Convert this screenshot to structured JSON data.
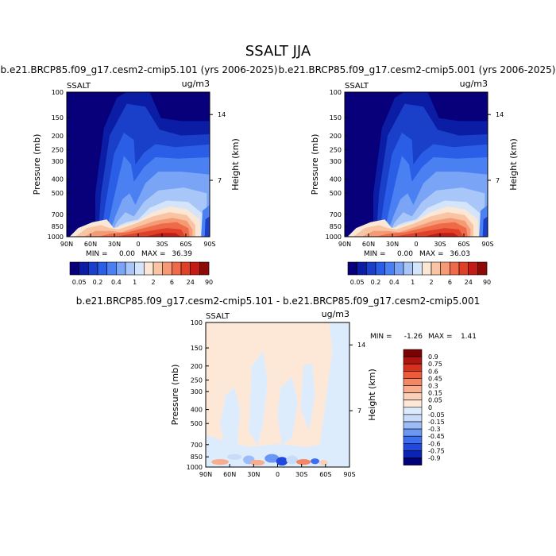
{
  "page_title": "SSALT JJA",
  "colors": {
    "ramp": [
      "#08007a",
      "#0a1da4",
      "#1a3fc8",
      "#2a5ee6",
      "#4a80f2",
      "#7aa4f6",
      "#a8c6f8",
      "#d4e4fb",
      "#fbe7d6",
      "#f9c4a4",
      "#f59a74",
      "#ee6a48",
      "#e03f28",
      "#c41c14",
      "#8e0a06"
    ],
    "diff_ramp": [
      "#00007a",
      "#0a24b4",
      "#1f48de",
      "#3c6ef0",
      "#6a96f4",
      "#9cbcf7",
      "#c8dcfa",
      "#ddecfd",
      "#fde8d8",
      "#fbd0b8",
      "#f8ae8c",
      "#f48664",
      "#ee5a3c",
      "#d8301e",
      "#b01410",
      "#7a0202"
    ]
  },
  "chart_data": [
    {
      "type": "heatmap",
      "title": "b.e21.BRCP85.f09_g17.cesm2-cmip5.101 (yrs 2006-2025)",
      "corner_left": "SSALT",
      "corner_right": "ug/m3",
      "ylabel": "Pressure (mb)",
      "y2label": "Height (km)",
      "x_ticks": [
        "90N",
        "60N",
        "30N",
        "0",
        "30S",
        "60S",
        "90S"
      ],
      "y_ticks": [
        "100",
        "150",
        "200",
        "250",
        "300",
        "400",
        "500",
        "700",
        "850",
        "1000"
      ],
      "y2_ticks": [
        "14",
        "7"
      ],
      "stats_min_label": "MIN =",
      "stats_min": "0.00",
      "stats_max_label": "MAX =",
      "stats_max": "36.39"
    },
    {
      "type": "heatmap",
      "title": "b.e21.BRCP85.f09_g17.cesm2-cmip5.001 (yrs 2006-2025)",
      "corner_left": "SSALT",
      "corner_right": "ug/m3",
      "ylabel": "Pressure (mb)",
      "y2label": "Height (km)",
      "x_ticks": [
        "90N",
        "60N",
        "30N",
        "0",
        "30S",
        "60S",
        "90S"
      ],
      "y_ticks": [
        "100",
        "150",
        "200",
        "250",
        "300",
        "400",
        "500",
        "700",
        "850",
        "1000"
      ],
      "y2_ticks": [
        "14",
        "7"
      ],
      "stats_min_label": "MIN =",
      "stats_min": "0.00",
      "stats_max_label": "MAX =",
      "stats_max": "36.03"
    },
    {
      "type": "heatmap",
      "title": "b.e21.BRCP85.f09_g17.cesm2-cmip5.101 - b.e21.BRCP85.f09_g17.cesm2-cmip5.001",
      "corner_left": "SSALT",
      "corner_right": "ug/m3",
      "ylabel": "Pressure (mb)",
      "y2label": "Height (km)",
      "x_ticks": [
        "90N",
        "60N",
        "30N",
        "0",
        "30S",
        "60S",
        "90S"
      ],
      "y_ticks": [
        "100",
        "150",
        "200",
        "250",
        "300",
        "400",
        "500",
        "700",
        "850",
        "1000"
      ],
      "y2_ticks": [
        "14",
        "7"
      ],
      "stats_min_label": "MIN =",
      "stats_min": "-1.26",
      "stats_max_label": "MAX =",
      "stats_max": "1.41"
    }
  ],
  "colorbar_labels": [
    "0.05",
    "0.2",
    "0.4",
    "1",
    "2",
    "6",
    "24",
    "90"
  ],
  "diff_colorbar_labels": [
    "0.9",
    "0.75",
    "0.6",
    "0.45",
    "0.3",
    "0.15",
    "0.05",
    "0",
    "-0.05",
    "-0.15",
    "-0.3",
    "-0.45",
    "-0.6",
    "-0.75",
    "-0.9"
  ]
}
